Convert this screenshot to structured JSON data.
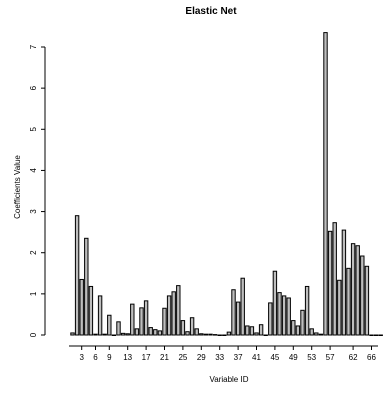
{
  "chart_data": {
    "type": "bar",
    "title": "Elastic Net",
    "xlabel": "Variable ID",
    "ylabel": "Coefficients Value",
    "ylim": [
      0,
      7.6
    ],
    "y_ticks": [
      0,
      1,
      2,
      3,
      4,
      5,
      6,
      7
    ],
    "bar_color": "#bebebe",
    "categories": [
      1,
      2,
      3,
      4,
      5,
      6,
      7,
      8,
      9,
      10,
      11,
      12,
      13,
      14,
      15,
      16,
      17,
      18,
      19,
      20,
      21,
      22,
      23,
      24,
      25,
      26,
      27,
      28,
      29,
      30,
      31,
      32,
      33,
      34,
      35,
      36,
      37,
      38,
      39,
      40,
      41,
      42,
      43,
      44,
      45,
      46,
      47,
      48,
      49,
      50,
      51,
      52,
      53,
      54,
      55,
      56,
      57,
      58,
      59,
      60,
      61,
      62,
      63,
      64,
      65,
      66,
      67,
      68
    ],
    "x_tick_labels": [
      3,
      6,
      9,
      13,
      17,
      21,
      25,
      29,
      33,
      37,
      41,
      45,
      49,
      53,
      57,
      62,
      66
    ],
    "values": [
      0.05,
      2.9,
      1.35,
      2.35,
      1.18,
      0.02,
      0.95,
      0.02,
      0.48,
      0.0,
      0.32,
      0.04,
      0.03,
      0.75,
      0.15,
      0.66,
      0.83,
      0.18,
      0.13,
      0.1,
      0.65,
      0.95,
      1.05,
      1.2,
      0.35,
      0.08,
      0.42,
      0.15,
      0.03,
      0.02,
      0.02,
      0.01,
      0.0,
      0.0,
      0.07,
      1.1,
      0.8,
      1.38,
      0.22,
      0.2,
      0.05,
      0.25,
      0.0,
      0.78,
      1.55,
      1.03,
      0.95,
      0.9,
      0.35,
      0.22,
      0.6,
      1.18,
      0.15,
      0.05,
      0.02,
      7.35,
      2.52,
      2.73,
      1.33,
      2.55,
      1.62,
      2.22,
      2.17,
      1.92,
      1.67,
      0.0,
      0.0,
      0.0
    ]
  }
}
